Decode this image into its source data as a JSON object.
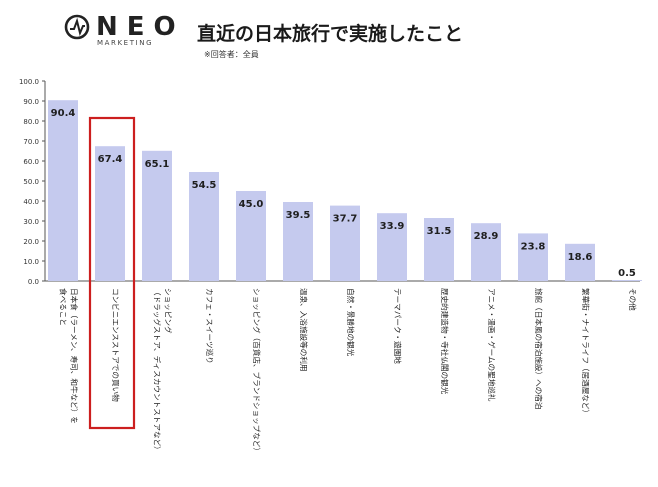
{
  "brand": {
    "name": "NEO",
    "sub": "MARKETING"
  },
  "header": {
    "title": "直近の日本旅行で実施したこと",
    "note": "※回答者：全員"
  },
  "colors": {
    "bar": "#c5caee",
    "highlight": "#cc1f1f",
    "axis": "#555555",
    "grid": "#cccccc"
  },
  "chart_data": {
    "type": "bar",
    "title": "直近の日本旅行で実施したこと",
    "ylim": [
      0,
      100
    ],
    "yticks": [
      "0.0",
      "10.0",
      "20.0",
      "30.0",
      "40.0",
      "50.0",
      "60.0",
      "70.0",
      "80.0",
      "90.0",
      "100.0"
    ],
    "grid": false,
    "highlight_index": 1,
    "categories": [
      [
        "日本食（ラーメン、寿司、和牛など）を",
        "食べること"
      ],
      [
        "コンビニエンスストアでの買い物"
      ],
      [
        "ショッピング",
        "（ドラッグストア、ディスカウントストアなど）"
      ],
      [
        "カフェ・スイーツ巡り"
      ],
      [
        "ショッピング（百貨店、ブランドショップなど）"
      ],
      [
        "温泉、入浴施設等の利用"
      ],
      [
        "自然・景勝地の観光"
      ],
      [
        "テーマパーク・遊園地"
      ],
      [
        "歴史的建造物・寺社仏閣の観光"
      ],
      [
        "アニメ・漫画・ゲームの聖地巡礼"
      ],
      [
        "旅館（日本風の宿泊施設）への宿泊"
      ],
      [
        "繁華街・ナイトライフ（居酒屋など）"
      ],
      [
        "その他"
      ]
    ],
    "values": [
      90.4,
      67.4,
      65.1,
      54.5,
      45.0,
      39.5,
      37.7,
      33.9,
      31.5,
      28.9,
      23.8,
      18.6,
      0.5
    ],
    "labels": [
      "90.4",
      "67.4",
      "65.1",
      "54.5",
      "45.0",
      "39.5",
      "37.7",
      "33.9",
      "31.5",
      "28.9",
      "23.8",
      "18.6",
      "0.5"
    ]
  }
}
